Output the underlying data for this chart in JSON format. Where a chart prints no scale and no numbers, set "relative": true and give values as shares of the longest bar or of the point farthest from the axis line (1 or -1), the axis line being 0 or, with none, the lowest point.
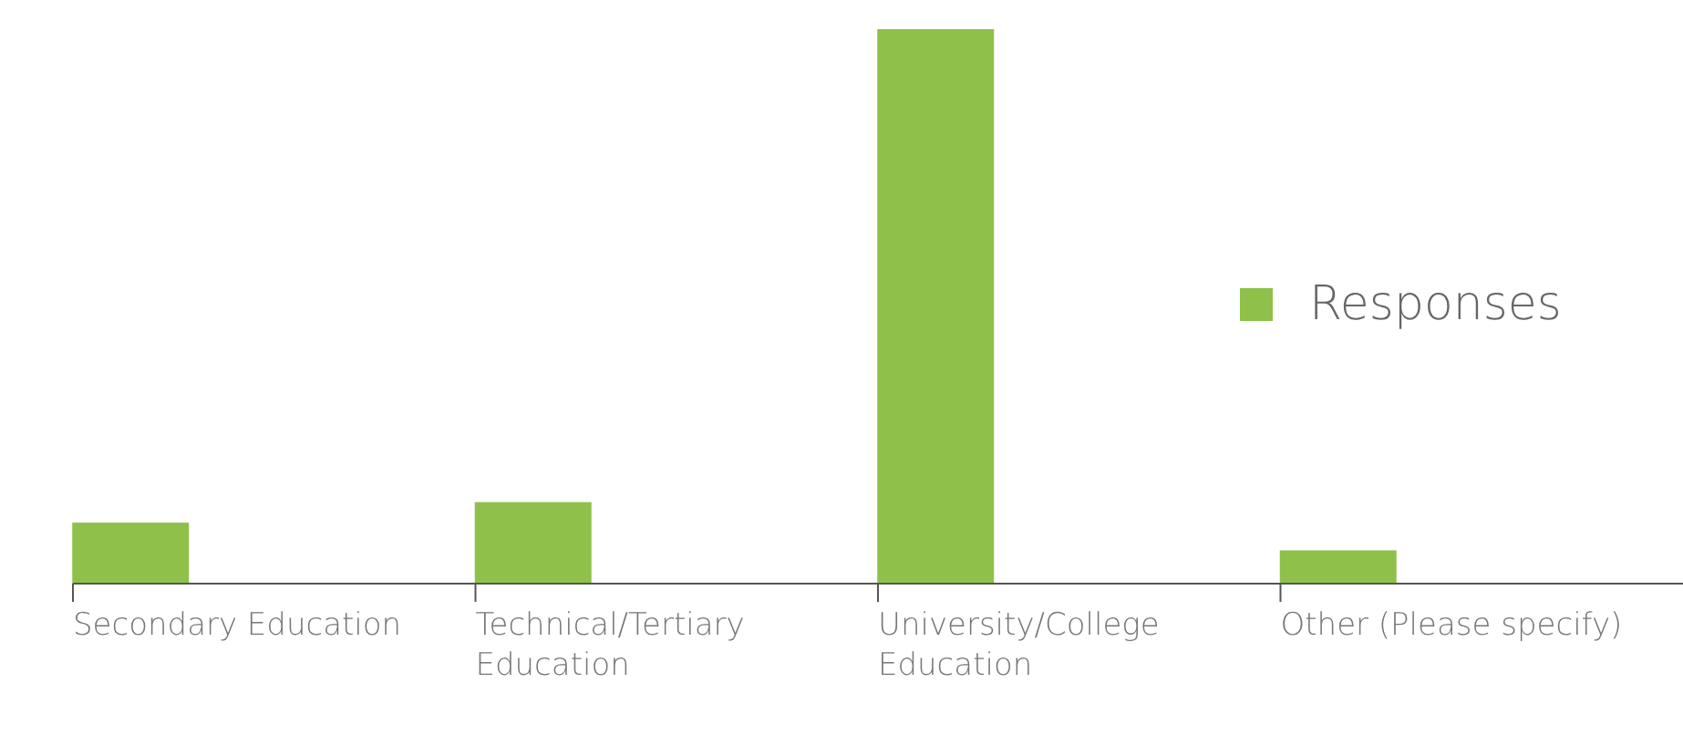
{
  "chart_data": {
    "type": "bar",
    "relative": true,
    "categories": [
      "Secondary Education",
      "Technical/Tertiary Education",
      "University/College Education",
      "Other (Please specify)"
    ],
    "series": [
      {
        "name": "Responses",
        "color": "#8fc04a",
        "values": [
          0.11,
          0.147,
          1,
          0.06
        ]
      }
    ],
    "legend": "right",
    "grid": false
  }
}
